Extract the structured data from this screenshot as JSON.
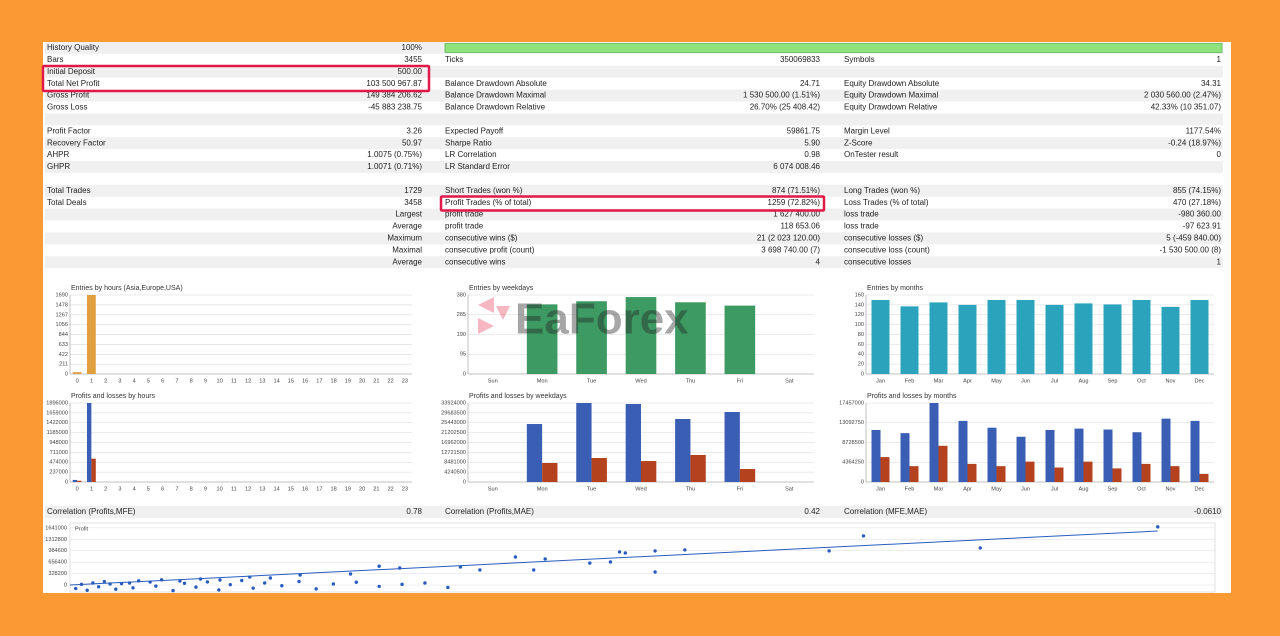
{
  "report": {
    "sections": [
      [
        {
          "c1": [
            "History Quality",
            "100%"
          ]
        },
        {
          "c1": [
            "Bars",
            "3455"
          ],
          "c2": [
            "Ticks",
            "350069833"
          ],
          "c3": [
            "Symbols",
            "1"
          ]
        },
        {
          "c1": [
            "Initial Deposit",
            "500.00"
          ]
        },
        {
          "c1": [
            "Total Net Profit",
            "103 500 967.87"
          ],
          "c2": [
            "Balance Drawdown Absolute",
            "24.71"
          ],
          "c3": [
            "Equity Drawdown Absolute",
            "34.31"
          ]
        },
        {
          "c1": [
            "Gross Profit",
            "149 384 206.62"
          ],
          "c2": [
            "Balance Drawdown Maximal",
            "1 530 500.00 (1.51%)"
          ],
          "c3": [
            "Equity Drawdown Maximal",
            "2 030 560.00 (2.47%)"
          ]
        },
        {
          "c1": [
            "Gross Loss",
            "-45 883 238.75"
          ],
          "c2": [
            "Balance Drawdown Relative",
            "26.70% (25 408.42)"
          ],
          "c3": [
            "Equity Drawdown Relative",
            "42.33% (10 351.07)"
          ]
        }
      ],
      [
        {
          "c1": [
            "Profit Factor",
            "3.26"
          ],
          "c2": [
            "Expected Payoff",
            "59861.75"
          ],
          "c3": [
            "Margin Level",
            "1177.54%"
          ]
        },
        {
          "c1": [
            "Recovery Factor",
            "50.97"
          ],
          "c2": [
            "Sharpe Ratio",
            "5.90"
          ],
          "c3": [
            "Z-Score",
            "-0.24 (18.97%)"
          ]
        },
        {
          "c1": [
            "AHPR",
            "1.0075 (0.75%)"
          ],
          "c2": [
            "LR Correlation",
            "0.98"
          ],
          "c3": [
            "OnTester result",
            "0"
          ]
        },
        {
          "c1": [
            "GHPR",
            "1.0071 (0.71%)"
          ],
          "c2": [
            "LR Standard Error",
            "6 074 008.46"
          ]
        }
      ],
      [
        {
          "c1": [
            "Total Trades",
            "1729"
          ],
          "c2": [
            "Short Trades (won %)",
            "874 (71.51%)"
          ],
          "c3": [
            "Long Trades (won %)",
            "855 (74.15%)"
          ]
        },
        {
          "c1": [
            "Total Deals",
            "3458"
          ],
          "c2": [
            "Profit Trades (% of total)",
            "1259 (72.82%)"
          ],
          "c3": [
            "Loss Trades (% of total)",
            "470 (27.18%)"
          ]
        }
      ]
    ],
    "extremes": [
      {
        "c1": "Largest",
        "c2": [
          "profit trade",
          "1 627 400.00"
        ],
        "c3": [
          "loss trade",
          "-980 360.00"
        ]
      },
      {
        "c1": "Average",
        "c2": [
          "profit trade",
          "118 653.06"
        ],
        "c3": [
          "loss trade",
          "-97 623.91"
        ]
      },
      {
        "c1": "Maximum",
        "c2": [
          "consecutive wins ($)",
          "21 (2 023 120.00)"
        ],
        "c3": [
          "consecutive losses ($)",
          "5 (-459 840.00)"
        ]
      },
      {
        "c1": "Maximal",
        "c2": [
          "consecutive profit (count)",
          "3 698 740.00 (7)"
        ],
        "c3": [
          "consecutive loss (count)",
          "-1 530 500.00 (8)"
        ]
      },
      {
        "c1": "Average",
        "c2": [
          "consecutive wins",
          "4"
        ],
        "c3": [
          "consecutive losses",
          "1"
        ]
      }
    ],
    "correlation": [
      [
        "Correlation (Profits,MFE)",
        "0.78"
      ],
      [
        "Correlation (Profits,MAE)",
        "0.42"
      ],
      [
        "Correlation (MFE,MAE)",
        "-0.0610"
      ]
    ]
  },
  "watermark": "EaForex",
  "chart_data": [
    {
      "type": "bar",
      "title": "Entries by hours (Asia,Europe,USA)",
      "categories": [
        0,
        1,
        2,
        3,
        4,
        5,
        6,
        7,
        8,
        9,
        10,
        11,
        12,
        13,
        14,
        15,
        16,
        17,
        18,
        19,
        20,
        21,
        22,
        23
      ],
      "series": [
        {
          "color": "#e0a040",
          "values": [
            39,
            1690,
            0,
            0,
            0,
            0,
            0,
            0,
            0,
            0,
            0,
            0,
            0,
            0,
            0,
            0,
            0,
            0,
            0,
            0,
            0,
            0,
            0,
            0
          ]
        }
      ],
      "ylim": [
        0,
        1690
      ],
      "yticks": [
        0,
        211,
        422,
        633,
        844,
        1056,
        1267,
        1478,
        1690
      ],
      "grid": true
    },
    {
      "type": "bar",
      "title": "Entries by weekdays",
      "categories": [
        "Sun",
        "Mon",
        "Tue",
        "Wed",
        "Thu",
        "Fri",
        "Sat"
      ],
      "series": [
        {
          "color": "#3d9a63",
          "values": [
            0,
            335,
            350,
            370,
            345,
            329,
            0
          ]
        }
      ],
      "ylim": [
        0,
        380
      ],
      "yticks": [
        0,
        95,
        190,
        285,
        380
      ],
      "grid": true
    },
    {
      "type": "bar",
      "title": "Entries by months",
      "categories": [
        "Jan",
        "Feb",
        "Mar",
        "Apr",
        "May",
        "Jun",
        "Jul",
        "Aug",
        "Sep",
        "Oct",
        "Nov",
        "Dec"
      ],
      "series": [
        {
          "color": "#2ba3bd",
          "values": [
            150,
            137,
            145,
            140,
            150,
            150,
            140,
            143,
            141,
            150,
            136,
            150
          ]
        }
      ],
      "ylim": [
        0,
        160
      ],
      "yticks": [
        0,
        20,
        40,
        60,
        80,
        100,
        120,
        140,
        160
      ],
      "grid": true
    },
    {
      "type": "bar",
      "title": "Profits and losses by hours",
      "categories": [
        0,
        1,
        2,
        3,
        4,
        5,
        6,
        7,
        8,
        9,
        10,
        11,
        12,
        13,
        14,
        15,
        16,
        17,
        18,
        19,
        20,
        21,
        22,
        23
      ],
      "series": [
        {
          "color": "#3b5eb5",
          "values": [
            50000,
            1896000,
            0,
            0,
            0,
            0,
            0,
            0,
            0,
            0,
            0,
            0,
            0,
            0,
            0,
            0,
            0,
            0,
            0,
            0,
            0,
            0,
            0,
            0
          ]
        },
        {
          "color": "#b5421e",
          "values": [
            30000,
            560000,
            0,
            0,
            0,
            0,
            0,
            0,
            0,
            0,
            0,
            0,
            0,
            0,
            0,
            0,
            0,
            0,
            0,
            0,
            0,
            0,
            0,
            0
          ]
        }
      ],
      "ylim": [
        0,
        1896000
      ],
      "yticks": [
        0,
        237000,
        474000,
        711000,
        948000,
        1185000,
        1422000,
        1659000,
        1896000
      ],
      "grid": true
    },
    {
      "type": "bar",
      "title": "Profits and losses by weekdays",
      "categories": [
        "Sun",
        "Mon",
        "Tue",
        "Wed",
        "Thu",
        "Fri",
        "Sat"
      ],
      "series": [
        {
          "color": "#3b5eb5",
          "values": [
            0,
            24900000,
            33924000,
            33500000,
            27050000,
            30060000,
            0
          ]
        },
        {
          "color": "#b5421e",
          "values": [
            0,
            8160000,
            10300000,
            9000000,
            11600000,
            5580000,
            0
          ]
        }
      ],
      "ylim": [
        0,
        33924000
      ],
      "yticks": [
        0,
        4240500,
        8481000,
        12721500,
        16962000,
        21202500,
        25443000,
        29683500,
        33924000
      ],
      "grid": true
    },
    {
      "type": "bar",
      "title": "Profits and losses by months",
      "categories": [
        "Jan",
        "Feb",
        "Mar",
        "Apr",
        "May",
        "Jun",
        "Jul",
        "Aug",
        "Sep",
        "Oct",
        "Nov",
        "Dec"
      ],
      "series": [
        {
          "color": "#3b5eb5",
          "values": [
            11500000,
            10800000,
            17457000,
            13500000,
            12000000,
            10000000,
            11500000,
            11800000,
            11600000,
            11000000,
            14000000,
            13500000
          ]
        },
        {
          "color": "#b5421e",
          "values": [
            5500000,
            3500000,
            8000000,
            4000000,
            3500000,
            4500000,
            3200000,
            4500000,
            3000000,
            4000000,
            3500000,
            1800000
          ]
        }
      ],
      "ylim": [
        0,
        17457000
      ],
      "yticks": [
        0,
        4364250,
        8728500,
        13092750,
        17457000
      ],
      "grid": true
    },
    {
      "type": "scatter",
      "ylabel": "Profit",
      "color": "#2a5cc0",
      "x": [
        950,
        693,
        795,
        663,
        537,
        511,
        480,
        485,
        472,
        511,
        454,
        415,
        389,
        358,
        405,
        341,
        288,
        270,
        245,
        201,
        175,
        157,
        131,
        114,
        96,
        70,
        52,
        35,
        5,
        10,
        15,
        20,
        25,
        30,
        40,
        45,
        55,
        60,
        75,
        80,
        90,
        100,
        110,
        120,
        130,
        140,
        150,
        160,
        170,
        185,
        200,
        215,
        230,
        250,
        270,
        290,
        310,
        330
      ],
      "y": [
        1670000,
        1410000,
        1065000,
        979000,
        1008000,
        979000,
        950000,
        920000,
        662000,
        374000,
        630000,
        748000,
        806000,
        432000,
        432000,
        518000,
        489000,
        540000,
        317000,
        288000,
        202000,
        230000,
        144000,
        173000,
        115000,
        86000,
        58000,
        30000,
        -100000,
        20000,
        -150000,
        60000,
        -50000,
        100000,
        -120000,
        40000,
        -80000,
        120000,
        -30000,
        150000,
        -160000,
        50000,
        -60000,
        90000,
        -140000,
        10000,
        130000,
        -90000,
        60000,
        -20000,
        100000,
        -110000,
        30000,
        80000,
        -40000,
        20000,
        60000,
        -70000
      ],
      "trendline": {
        "x": [
          0,
          950
        ],
        "y": [
          0,
          1550000
        ]
      },
      "xlim": [
        0,
        1000
      ],
      "ylim": [
        -200000,
        1780000
      ],
      "yticks": [
        0,
        328200,
        656400,
        984600,
        1312800,
        1641000
      ],
      "grid": true
    }
  ]
}
